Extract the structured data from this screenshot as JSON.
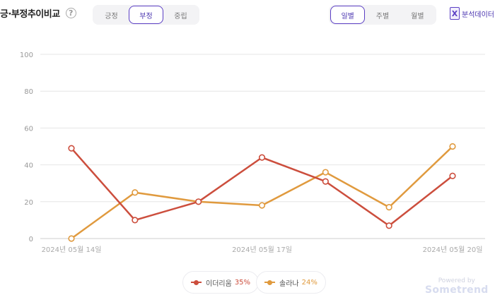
{
  "header": {
    "title": "긍·부정추이비교",
    "help_icon": "question-icon",
    "sentiment_tabs": [
      {
        "label": "긍정",
        "active": false
      },
      {
        "label": "부정",
        "active": true
      },
      {
        "label": "중립",
        "active": false
      }
    ],
    "period_tabs": [
      {
        "label": "일별",
        "active": true
      },
      {
        "label": "주별",
        "active": false
      },
      {
        "label": "월별",
        "active": false
      }
    ],
    "export": {
      "icon": "excel-icon",
      "icon_glyph": "X",
      "label": "분석데이터"
    }
  },
  "chart_data": {
    "type": "line",
    "x": [
      "2024-05-14",
      "2024-05-15",
      "2024-05-16",
      "2024-05-17",
      "2024-05-18",
      "2024-05-19",
      "2024-05-20"
    ],
    "x_tick_labels": [
      {
        "index": 0,
        "label": "2024년 05월 14일"
      },
      {
        "index": 3,
        "label": "2024년 05월 17일"
      },
      {
        "index": 6,
        "label": "2024년 05월 20일"
      }
    ],
    "y_ticks": [
      0,
      20,
      40,
      60,
      80,
      100
    ],
    "ylim": [
      0,
      100
    ],
    "grid": true,
    "series": [
      {
        "name": "이더리움",
        "share": "35%",
        "color": "#cc4e3d",
        "values": [
          49,
          10,
          20,
          44,
          31,
          7,
          34
        ]
      },
      {
        "name": "솔라나",
        "share": "24%",
        "color": "#e09a3e",
        "values": [
          0,
          25,
          20,
          18,
          36,
          17,
          50
        ]
      }
    ],
    "legend_position": "bottom-center"
  },
  "watermark": {
    "top": "Powered by",
    "brand": "Sometrend"
  }
}
